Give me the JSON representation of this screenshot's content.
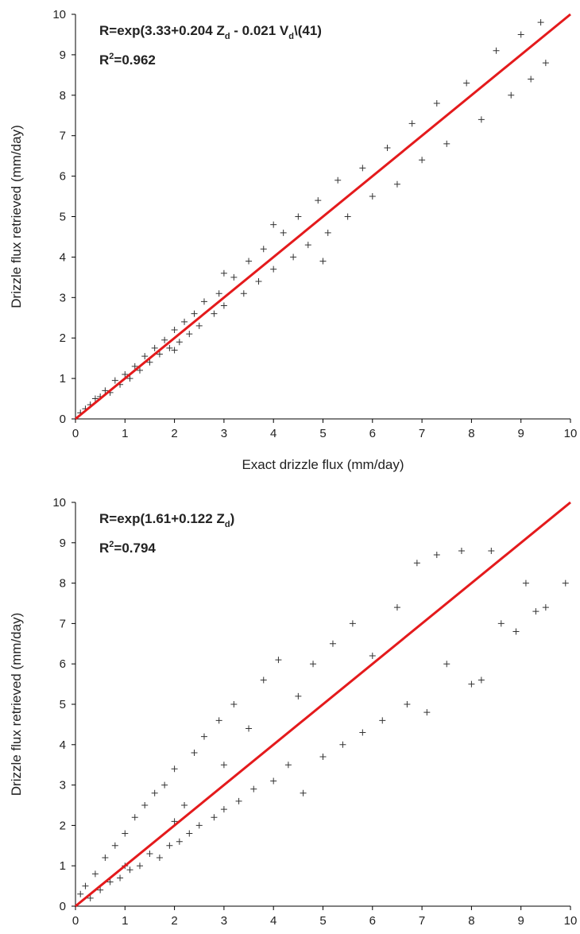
{
  "chart_data": [
    {
      "type": "scatter",
      "equation": [
        "R=exp(3.33+0.204 Z",
        "d",
        " - 0.021 V",
        "d",
        "\\(41)"
      ],
      "fit": [
        "R",
        "2",
        "=0.962"
      ],
      "xlabel": "Exact drizzle flux (mm/day)",
      "ylabel": "Drizzle flux retrieved (mm/day)",
      "xlim": [
        0,
        10
      ],
      "ylim": [
        0,
        10
      ],
      "xticks": [
        0,
        1,
        2,
        3,
        4,
        5,
        6,
        7,
        8,
        9,
        10
      ],
      "yticks": [
        0,
        1,
        2,
        3,
        4,
        5,
        6,
        7,
        8,
        9,
        10
      ],
      "x": [
        0.1,
        0.2,
        0.3,
        0.4,
        0.5,
        0.6,
        0.7,
        0.8,
        0.9,
        1.0,
        1.1,
        1.2,
        1.3,
        1.4,
        1.5,
        1.6,
        1.7,
        1.8,
        1.9,
        2.0,
        2.1,
        2.2,
        2.3,
        2.4,
        2.5,
        2.6,
        2.8,
        2.9,
        3.0,
        3.2,
        3.4,
        3.5,
        3.7,
        3.8,
        4.0,
        4.2,
        4.4,
        4.5,
        4.7,
        4.9,
        5.1,
        5.3,
        5.5,
        5.8,
        6.0,
        6.3,
        6.5,
        6.8,
        7.0,
        7.3,
        7.5,
        7.9,
        8.2,
        8.5,
        8.8,
        9.0,
        9.2,
        9.4,
        9.5,
        5.0,
        4.0,
        3.0,
        2.0
      ],
      "series": [
        {
          "color": "#333333",
          "values": [
            0.15,
            0.25,
            0.35,
            0.5,
            0.55,
            0.7,
            0.65,
            0.95,
            0.85,
            1.1,
            1.0,
            1.3,
            1.2,
            1.55,
            1.4,
            1.75,
            1.6,
            1.95,
            1.75,
            2.2,
            1.9,
            2.4,
            2.1,
            2.6,
            2.3,
            2.9,
            2.6,
            3.1,
            2.8,
            3.5,
            3.1,
            3.9,
            3.4,
            4.2,
            3.7,
            4.6,
            4.0,
            5.0,
            4.3,
            5.4,
            4.6,
            5.9,
            5.0,
            6.2,
            5.5,
            6.7,
            5.8,
            7.3,
            6.4,
            7.8,
            6.8,
            8.3,
            7.4,
            9.1,
            8.0,
            9.5,
            8.4,
            9.8,
            8.8,
            3.9,
            4.8,
            3.6,
            1.7
          ]
        }
      ],
      "reference_line": {
        "color": "#e41a1c",
        "x": [
          0,
          10
        ],
        "y": [
          0,
          10
        ]
      }
    },
    {
      "type": "scatter",
      "equation": [
        "R=exp(1.61+0.122 Z",
        "d",
        ")"
      ],
      "fit": [
        "R",
        "2",
        "=0.794"
      ],
      "ylabel": "Drizzle flux retrieved (mm/day)",
      "xlim": [
        0,
        10
      ],
      "ylim": [
        0,
        10
      ],
      "xticks": [
        0,
        1,
        2,
        3,
        4,
        5,
        6,
        7,
        8,
        9,
        10
      ],
      "yticks": [
        0,
        1,
        2,
        3,
        4,
        5,
        6,
        7,
        8,
        9,
        10
      ],
      "x": [
        0.1,
        0.2,
        0.3,
        0.4,
        0.5,
        0.6,
        0.7,
        0.8,
        0.9,
        1.0,
        1.1,
        1.2,
        1.3,
        1.4,
        1.5,
        1.6,
        1.7,
        1.8,
        1.9,
        2.0,
        2.1,
        2.2,
        2.3,
        2.4,
        2.5,
        2.6,
        2.8,
        2.9,
        3.0,
        3.2,
        3.3,
        3.5,
        3.6,
        3.8,
        4.0,
        4.1,
        4.3,
        4.5,
        4.6,
        4.8,
        5.0,
        5.2,
        5.4,
        5.6,
        5.8,
        6.0,
        6.2,
        6.5,
        6.7,
        6.9,
        7.1,
        7.3,
        7.5,
        7.8,
        8.0,
        8.2,
        8.4,
        8.6,
        8.9,
        9.1,
        9.3,
        9.5,
        9.9,
        3.0,
        2.0,
        1.0
      ],
      "series": [
        {
          "color": "#333333",
          "values": [
            0.3,
            0.5,
            0.2,
            0.8,
            0.4,
            1.2,
            0.6,
            1.5,
            0.7,
            1.8,
            0.9,
            2.2,
            1.0,
            2.5,
            1.3,
            2.8,
            1.2,
            3.0,
            1.5,
            3.4,
            1.6,
            2.5,
            1.8,
            3.8,
            2.0,
            4.2,
            2.2,
            4.6,
            2.4,
            5.0,
            2.6,
            4.4,
            2.9,
            5.6,
            3.1,
            6.1,
            3.5,
            5.2,
            2.8,
            6.0,
            3.7,
            6.5,
            4.0,
            7.0,
            4.3,
            6.2,
            4.6,
            7.4,
            5.0,
            8.5,
            4.8,
            8.7,
            6.0,
            8.8,
            5.5,
            5.6,
            8.8,
            7.0,
            6.8,
            8.0,
            7.3,
            7.4,
            8.0,
            3.5,
            2.1,
            1.0
          ]
        }
      ],
      "reference_line": {
        "color": "#e41a1c",
        "x": [
          0,
          10
        ],
        "y": [
          0,
          10
        ]
      }
    }
  ]
}
